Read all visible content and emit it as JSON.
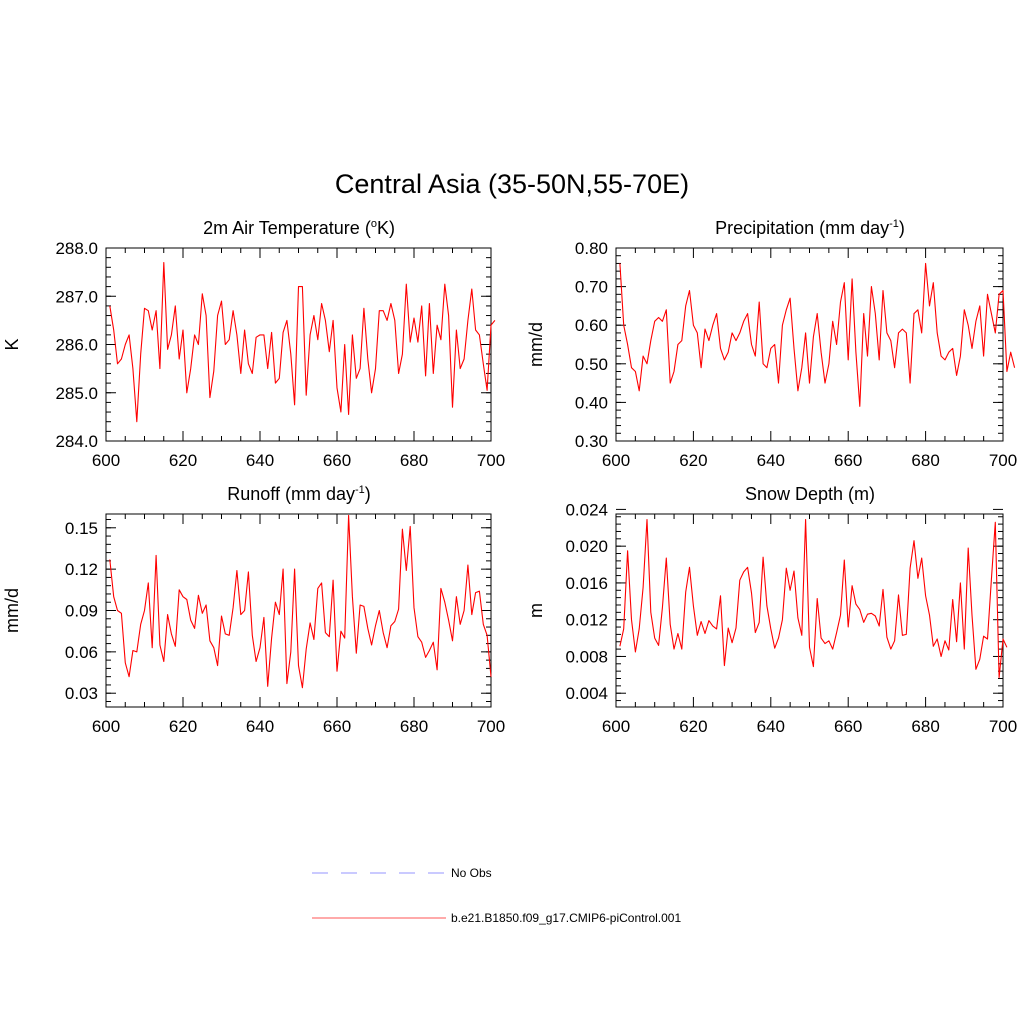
{
  "figure": {
    "title": "Central Asia (35-50N,55-70E)"
  },
  "legend": {
    "entries": [
      {
        "label": "No Obs",
        "color": "#aaaaff",
        "dash": true
      },
      {
        "label": "b.e21.B1850.f09_g17.CMIP6-piControl.001",
        "color": "#ff7777",
        "dash": false
      }
    ]
  },
  "chart_data": [
    {
      "type": "line",
      "title": "2m Air Temperature",
      "title_unit": "(oK)",
      "ylabel": "K",
      "xlim": [
        600,
        700
      ],
      "ylim": [
        284.0,
        288.0
      ],
      "xticks": [
        "600",
        "620",
        "640",
        "660",
        "680",
        "700"
      ],
      "yticks": [
        "284.0",
        "285.0",
        "286.0",
        "287.0",
        "288.0"
      ],
      "color": "#ff0000",
      "x_start": 601,
      "values": [
        286.8,
        286.3,
        285.6,
        285.7,
        286.0,
        286.2,
        285.5,
        284.4,
        285.8,
        286.75,
        286.7,
        286.3,
        286.7,
        285.5,
        287.7,
        285.9,
        286.2,
        286.8,
        285.7,
        286.3,
        285.0,
        285.5,
        286.2,
        286.0,
        287.05,
        286.6,
        284.9,
        285.45,
        286.6,
        286.9,
        286.0,
        286.1,
        286.7,
        286.2,
        285.4,
        286.3,
        285.6,
        285.4,
        286.15,
        286.2,
        286.2,
        285.5,
        286.25,
        285.2,
        285.3,
        286.25,
        286.5,
        285.8,
        284.75,
        287.2,
        287.2,
        284.95,
        286.2,
        286.6,
        286.1,
        286.85,
        286.5,
        285.85,
        286.5,
        285.1,
        284.6,
        286.0,
        284.55,
        286.2,
        285.3,
        285.5,
        286.75,
        285.7,
        285.0,
        285.5,
        286.7,
        286.7,
        286.5,
        286.85,
        286.5,
        285.4,
        285.8,
        287.25,
        286.05,
        286.55,
        286.05,
        286.8,
        285.35,
        286.85,
        285.4,
        286.4,
        286.1,
        287.25,
        286.6,
        284.7,
        286.3,
        285.5,
        285.7,
        286.5,
        287.15,
        286.3,
        286.2,
        285.6,
        285.05,
        286.4,
        286.5
      ]
    },
    {
      "type": "line",
      "title": "Precipitation",
      "title_unit": "(mm day-1)",
      "ylabel": "mm/d",
      "xlim": [
        600,
        700
      ],
      "ylim": [
        0.3,
        0.8
      ],
      "xticks": [
        "600",
        "620",
        "640",
        "660",
        "680",
        "700"
      ],
      "yticks": [
        "0.30",
        "0.40",
        "0.50",
        "0.60",
        "0.70",
        "0.80"
      ],
      "color": "#ff0000",
      "x_start": 601,
      "values": [
        0.76,
        0.6,
        0.55,
        0.49,
        0.48,
        0.43,
        0.52,
        0.5,
        0.56,
        0.61,
        0.62,
        0.61,
        0.64,
        0.45,
        0.48,
        0.55,
        0.56,
        0.65,
        0.69,
        0.6,
        0.58,
        0.49,
        0.59,
        0.56,
        0.6,
        0.63,
        0.54,
        0.51,
        0.53,
        0.58,
        0.56,
        0.58,
        0.61,
        0.63,
        0.55,
        0.52,
        0.66,
        0.5,
        0.49,
        0.54,
        0.55,
        0.45,
        0.6,
        0.64,
        0.67,
        0.54,
        0.43,
        0.49,
        0.58,
        0.45,
        0.57,
        0.63,
        0.53,
        0.45,
        0.5,
        0.61,
        0.55,
        0.66,
        0.71,
        0.51,
        0.72,
        0.53,
        0.39,
        0.63,
        0.52,
        0.7,
        0.63,
        0.51,
        0.69,
        0.58,
        0.56,
        0.49,
        0.58,
        0.59,
        0.58,
        0.45,
        0.63,
        0.64,
        0.58,
        0.76,
        0.65,
        0.71,
        0.58,
        0.52,
        0.51,
        0.53,
        0.54,
        0.47,
        0.52,
        0.64,
        0.6,
        0.54,
        0.61,
        0.65,
        0.52,
        0.68,
        0.63,
        0.58,
        0.68,
        0.69,
        0.48,
        0.53,
        0.49
      ]
    },
    {
      "type": "line",
      "title": "Runoff",
      "title_unit": "(mm day-1)",
      "ylabel": "mm/d",
      "xlim": [
        600,
        700
      ],
      "ylim": [
        0.02,
        0.16
      ],
      "xticks": [
        "600",
        "620",
        "640",
        "660",
        "680",
        "700"
      ],
      "yticks": [
        "0.03",
        "0.06",
        "0.09",
        "0.12",
        "0.15"
      ],
      "color": "#ff0000",
      "x_start": 601,
      "values": [
        0.127,
        0.1,
        0.09,
        0.088,
        0.052,
        0.042,
        0.061,
        0.06,
        0.08,
        0.09,
        0.11,
        0.063,
        0.13,
        0.065,
        0.053,
        0.087,
        0.073,
        0.064,
        0.105,
        0.1,
        0.098,
        0.083,
        0.077,
        0.101,
        0.088,
        0.094,
        0.068,
        0.063,
        0.05,
        0.086,
        0.073,
        0.072,
        0.092,
        0.119,
        0.087,
        0.09,
        0.118,
        0.072,
        0.053,
        0.063,
        0.085,
        0.035,
        0.07,
        0.096,
        0.087,
        0.12,
        0.037,
        0.06,
        0.12,
        0.05,
        0.034,
        0.062,
        0.081,
        0.069,
        0.106,
        0.11,
        0.074,
        0.071,
        0.112,
        0.046,
        0.075,
        0.07,
        0.159,
        0.1,
        0.059,
        0.094,
        0.093,
        0.077,
        0.065,
        0.079,
        0.09,
        0.074,
        0.063,
        0.079,
        0.082,
        0.091,
        0.149,
        0.119,
        0.151,
        0.092,
        0.071,
        0.067,
        0.056,
        0.061,
        0.067,
        0.047,
        0.106,
        0.096,
        0.083,
        0.068,
        0.1,
        0.08,
        0.09,
        0.123,
        0.087,
        0.103,
        0.104,
        0.08,
        0.072,
        0.042
      ]
    },
    {
      "type": "line",
      "title": "Snow Depth (m)",
      "title_unit": "",
      "ylabel": "m",
      "xlim": [
        600,
        700
      ],
      "ylim": [
        0.0025,
        0.0235
      ],
      "xticks": [
        "600",
        "620",
        "640",
        "660",
        "680",
        "700"
      ],
      "yticks": [
        "0.004",
        "0.008",
        "0.012",
        "0.016",
        "0.020",
        "0.024"
      ],
      "color": "#ff0000",
      "x_start": 601,
      "values": [
        0.0091,
        0.011,
        0.0195,
        0.012,
        0.0085,
        0.011,
        0.0155,
        0.0229,
        0.0128,
        0.01,
        0.0092,
        0.0133,
        0.0187,
        0.0115,
        0.0088,
        0.0105,
        0.0088,
        0.015,
        0.0177,
        0.0135,
        0.0103,
        0.0118,
        0.0105,
        0.0119,
        0.0113,
        0.011,
        0.0146,
        0.007,
        0.0111,
        0.0095,
        0.0111,
        0.0163,
        0.0172,
        0.0177,
        0.0149,
        0.0106,
        0.0117,
        0.0188,
        0.0135,
        0.011,
        0.0089,
        0.01,
        0.012,
        0.0176,
        0.0152,
        0.0173,
        0.0122,
        0.0103,
        0.0229,
        0.009,
        0.0069,
        0.0143,
        0.01,
        0.0094,
        0.0097,
        0.0088,
        0.0106,
        0.0125,
        0.0185,
        0.0112,
        0.0157,
        0.0137,
        0.0131,
        0.0117,
        0.0126,
        0.0127,
        0.0124,
        0.0113,
        0.0153,
        0.0101,
        0.0088,
        0.0097,
        0.0147,
        0.0103,
        0.0104,
        0.0176,
        0.0206,
        0.0165,
        0.0187,
        0.0146,
        0.0125,
        0.0091,
        0.0099,
        0.008,
        0.0097,
        0.0087,
        0.0142,
        0.0096,
        0.016,
        0.0088,
        0.0198,
        0.0125,
        0.0066,
        0.0077,
        0.0102,
        0.0099,
        0.0164,
        0.0226,
        0.0057,
        0.0099,
        0.009
      ]
    }
  ]
}
